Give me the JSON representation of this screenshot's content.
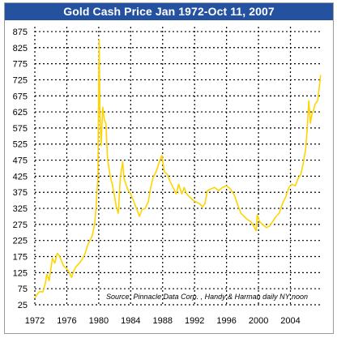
{
  "chart_data": {
    "type": "line",
    "title": "Gold Cash Price Jan 1972-Oct 11, 2007",
    "xlabel": "",
    "ylabel": "",
    "source": "Source: Pinnacle Data Corp. , Handy & Harman daily NY noon",
    "xlim": [
      1972,
      2007.8
    ],
    "ylim": [
      25,
      890
    ],
    "x_ticks": [
      1972,
      1976,
      1980,
      1984,
      1988,
      1992,
      1996,
      2000,
      2004
    ],
    "y_ticks": [
      25,
      75,
      125,
      175,
      225,
      275,
      325,
      375,
      425,
      475,
      525,
      575,
      625,
      675,
      725,
      775,
      825,
      875
    ],
    "grid": true,
    "legend": "none",
    "line_color": "#ffd400",
    "series": [
      {
        "name": "",
        "x": [
          1972.0,
          1972.3,
          1972.6,
          1973.0,
          1973.3,
          1973.5,
          1973.8,
          1974.0,
          1974.2,
          1974.5,
          1974.8,
          1975.0,
          1975.3,
          1975.6,
          1975.9,
          1976.2,
          1976.6,
          1976.9,
          1977.2,
          1977.6,
          1978.0,
          1978.3,
          1978.6,
          1978.9,
          1979.2,
          1979.5,
          1979.7,
          1979.9,
          1980.05,
          1980.15,
          1980.3,
          1980.5,
          1980.7,
          1980.9,
          1981.1,
          1981.4,
          1981.7,
          1982.0,
          1982.2,
          1982.45,
          1982.7,
          1983.0,
          1983.15,
          1983.4,
          1983.7,
          1984.0,
          1984.4,
          1984.8,
          1985.1,
          1985.4,
          1985.8,
          1986.2,
          1986.5,
          1986.8,
          1987.2,
          1987.6,
          1987.9,
          1988.2,
          1988.6,
          1988.9,
          1989.3,
          1989.7,
          1990.0,
          1990.4,
          1990.7,
          1991.0,
          1991.4,
          1991.8,
          1992.2,
          1992.6,
          1993.0,
          1993.3,
          1993.6,
          1994.0,
          1994.5,
          1995.0,
          1995.5,
          1996.0,
          1996.5,
          1997.0,
          1997.4,
          1997.8,
          1998.2,
          1998.6,
          1999.0,
          1999.4,
          1999.7,
          1999.85,
          2000.1,
          2000.5,
          2001.0,
          2001.4,
          2001.8,
          2002.2,
          2002.6,
          2003.0,
          2003.4,
          2003.8,
          2004.2,
          2004.6,
          2005.0,
          2005.3,
          2005.6,
          2005.9,
          2006.1,
          2006.3,
          2006.5,
          2006.7,
          2006.9,
          2007.1,
          2007.4,
          2007.6,
          2007.78
        ],
        "y": [
          46,
          58,
          66,
          65,
          90,
          120,
          100,
          135,
          170,
          155,
          185,
          180,
          165,
          145,
          140,
          130,
          110,
          132,
          145,
          155,
          170,
          185,
          210,
          225,
          240,
          280,
          340,
          430,
          850,
          620,
          520,
          640,
          600,
          590,
          480,
          430,
          400,
          360,
          330,
          310,
          420,
          470,
          420,
          400,
          380,
          370,
          345,
          320,
          300,
          320,
          325,
          345,
          390,
          420,
          440,
          470,
          490,
          440,
          430,
          410,
          390,
          370,
          400,
          370,
          390,
          370,
          360,
          350,
          345,
          340,
          330,
          340,
          380,
          385,
          390,
          380,
          390,
          395,
          385,
          365,
          335,
          310,
          300,
          290,
          285,
          270,
          255,
          305,
          285,
          275,
          265,
          270,
          285,
          300,
          310,
          340,
          360,
          390,
          400,
          395,
          420,
          430,
          465,
          510,
          570,
          660,
          590,
          620,
          630,
          650,
          660,
          700,
          740
        ]
      }
    ]
  }
}
